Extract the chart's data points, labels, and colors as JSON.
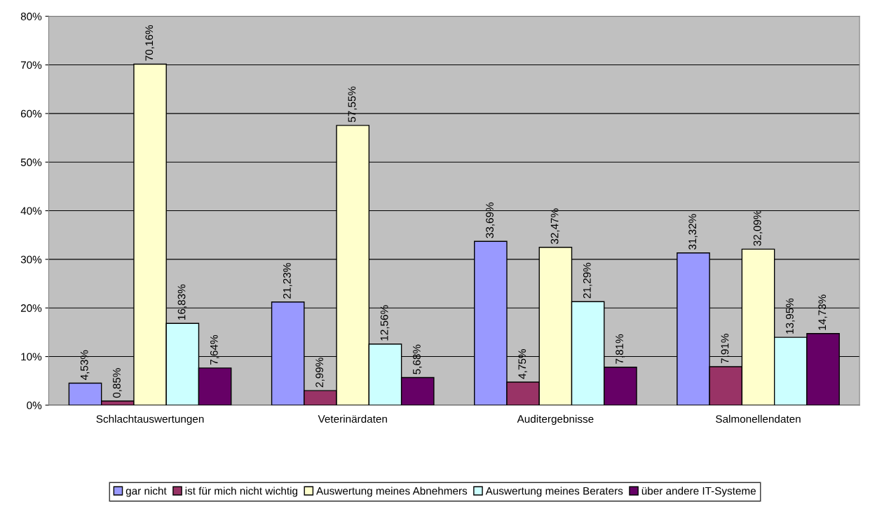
{
  "chart_data": {
    "type": "bar",
    "categories": [
      "Schlachtauswertungen",
      "Veterinärdaten",
      "Auditergebnisse",
      "Salmonellendaten"
    ],
    "series": [
      {
        "name": "gar nicht",
        "color": "#9999ff",
        "values": [
          4.53,
          21.23,
          33.69,
          31.32
        ],
        "value_labels": [
          "4,53%",
          "21,23%",
          "33,69%",
          "31,32%"
        ]
      },
      {
        "name": "ist für mich nicht wichtig",
        "color": "#993366",
        "values": [
          0.85,
          2.99,
          4.75,
          7.91
        ],
        "value_labels": [
          "0,85%",
          "2,99%",
          "4,75%",
          "7,91%"
        ]
      },
      {
        "name": "Auswertung meines Abnehmers",
        "color": "#ffffcc",
        "values": [
          70.16,
          57.55,
          32.47,
          32.09
        ],
        "value_labels": [
          "70,16%",
          "57,55%",
          "32,47%",
          "32,09%"
        ]
      },
      {
        "name": "Auswertung meines Beraters",
        "color": "#ccffff",
        "values": [
          16.83,
          12.56,
          21.29,
          13.95
        ],
        "value_labels": [
          "16,83%",
          "12,56%",
          "21,29%",
          "13,95%"
        ]
      },
      {
        "name": "über andere IT-Systeme",
        "color": "#660066",
        "values": [
          7.64,
          5.68,
          7.81,
          14.73
        ],
        "value_labels": [
          "7,64%",
          "5,68%",
          "7,81%",
          "14,73%"
        ]
      }
    ],
    "ylim": [
      0,
      80
    ],
    "yticks": [
      {
        "value": 0,
        "label": "0%"
      },
      {
        "value": 10,
        "label": "10%"
      },
      {
        "value": 20,
        "label": "20%"
      },
      {
        "value": 30,
        "label": "30%"
      },
      {
        "value": 40,
        "label": "40%"
      },
      {
        "value": 50,
        "label": "50%"
      },
      {
        "value": 60,
        "label": "60%"
      },
      {
        "value": 70,
        "label": "70%"
      },
      {
        "value": 80,
        "label": "80%"
      }
    ],
    "grid": "y",
    "legend": "bottom"
  }
}
